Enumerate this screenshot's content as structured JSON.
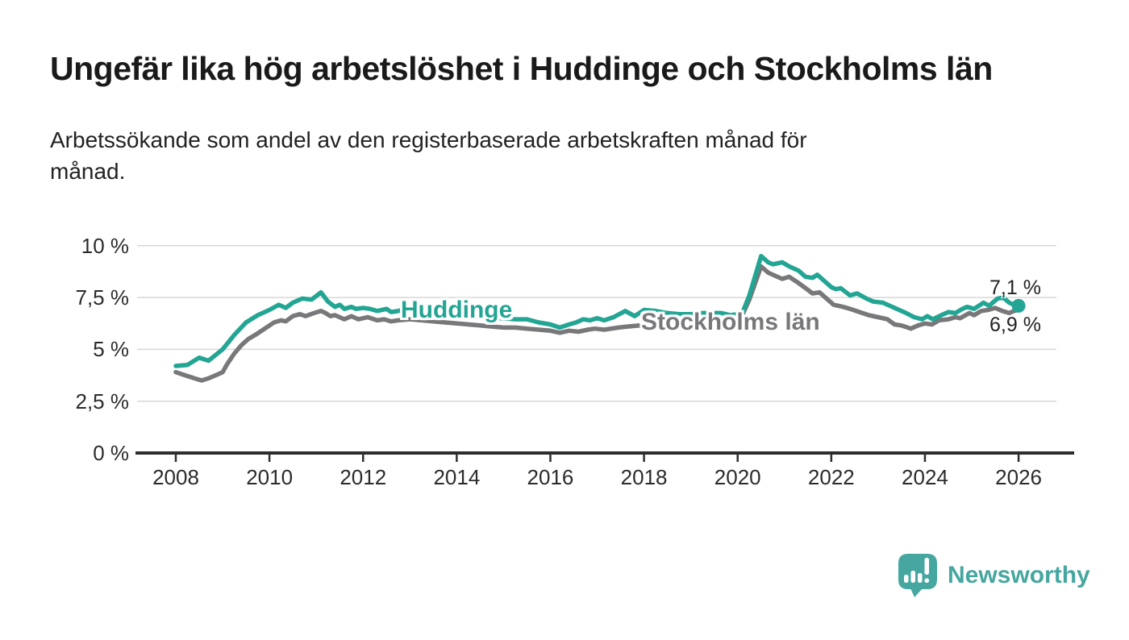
{
  "title": "Ungefär lika hög arbetslöshet i Huddinge och Stockholms län",
  "subtitle": "Arbetssökande som andel av den registerbaserade arbetskraften månad för\nmånad.",
  "logo": {
    "text": "Newsworthy",
    "icon": "newsworthy-speech-bubble-bar-chart-icon",
    "color": "#46a7a0"
  },
  "colors": {
    "huddinge_teal": "#23a594",
    "stockholm_gray": "#78787b",
    "axis": "#2e2e2e",
    "grid": "#d8d8d8",
    "text": "#2b2b2b"
  },
  "chart_data": {
    "type": "line",
    "title": "Ungefär lika hög arbetslöshet i Huddinge och Stockholms län",
    "subtitle": "Arbetssökande som andel av den registerbaserade arbetskraften månad för månad.",
    "xlabel": "",
    "ylabel": "",
    "xlim": [
      2007.15,
      2027.2
    ],
    "ylim": [
      0,
      10.4
    ],
    "grid": "horizontal",
    "legend_position": "inline-labels",
    "x_ticks": [
      2008,
      2010,
      2012,
      2014,
      2016,
      2018,
      2020,
      2022,
      2024,
      2026
    ],
    "x_tick_labels": [
      "2008",
      "2010",
      "2012",
      "2014",
      "2016",
      "2018",
      "2020",
      "2022",
      "2024",
      "2026"
    ],
    "y_ticks": [
      0,
      2.5,
      5,
      7.5,
      10
    ],
    "y_tick_labels": [
      "0 %",
      "2,5 %",
      "5 %",
      "7,5 %",
      "10 %"
    ],
    "series": [
      {
        "name": "Huddinge",
        "color": "#23a594",
        "end_label": "7,1 %",
        "end_value": 7.1,
        "end_dot": true,
        "points": [
          [
            2008.0,
            4.2
          ],
          [
            2008.25,
            4.25
          ],
          [
            2008.5,
            4.6
          ],
          [
            2008.7,
            4.45
          ],
          [
            2009.0,
            5.0
          ],
          [
            2009.25,
            5.7
          ],
          [
            2009.5,
            6.3
          ],
          [
            2009.75,
            6.65
          ],
          [
            2010.0,
            6.9
          ],
          [
            2010.2,
            7.15
          ],
          [
            2010.35,
            7.0
          ],
          [
            2010.5,
            7.25
          ],
          [
            2010.7,
            7.45
          ],
          [
            2010.9,
            7.4
          ],
          [
            2011.1,
            7.75
          ],
          [
            2011.25,
            7.3
          ],
          [
            2011.4,
            7.05
          ],
          [
            2011.5,
            7.15
          ],
          [
            2011.6,
            6.95
          ],
          [
            2011.75,
            7.05
          ],
          [
            2011.85,
            6.95
          ],
          [
            2012.0,
            7.0
          ],
          [
            2012.15,
            6.95
          ],
          [
            2012.3,
            6.85
          ],
          [
            2012.5,
            6.95
          ],
          [
            2012.6,
            6.8
          ],
          [
            2012.75,
            6.85
          ],
          [
            2013.0,
            7.0
          ],
          [
            2013.25,
            6.9
          ],
          [
            2013.5,
            6.8
          ],
          [
            2013.75,
            6.7
          ],
          [
            2014.0,
            6.65
          ],
          [
            2014.25,
            6.6
          ],
          [
            2014.5,
            6.55
          ],
          [
            2014.75,
            6.5
          ],
          [
            2015.0,
            6.5
          ],
          [
            2015.25,
            6.45
          ],
          [
            2015.5,
            6.45
          ],
          [
            2015.75,
            6.3
          ],
          [
            2016.0,
            6.2
          ],
          [
            2016.2,
            6.05
          ],
          [
            2016.4,
            6.2
          ],
          [
            2016.55,
            6.3
          ],
          [
            2016.7,
            6.45
          ],
          [
            2016.85,
            6.4
          ],
          [
            2017.0,
            6.5
          ],
          [
            2017.15,
            6.4
          ],
          [
            2017.35,
            6.55
          ],
          [
            2017.6,
            6.85
          ],
          [
            2017.8,
            6.6
          ],
          [
            2018.0,
            6.9
          ],
          [
            2018.25,
            6.85
          ],
          [
            2018.5,
            6.75
          ],
          [
            2018.75,
            6.7
          ],
          [
            2019.0,
            6.7
          ],
          [
            2019.25,
            6.75
          ],
          [
            2019.5,
            6.75
          ],
          [
            2019.65,
            6.75
          ],
          [
            2019.85,
            6.65
          ],
          [
            2020.0,
            6.7
          ],
          [
            2020.1,
            6.75
          ],
          [
            2020.25,
            7.6
          ],
          [
            2020.5,
            9.5
          ],
          [
            2020.65,
            9.2
          ],
          [
            2020.75,
            9.1
          ],
          [
            2020.95,
            9.2
          ],
          [
            2021.1,
            9.0
          ],
          [
            2021.3,
            8.8
          ],
          [
            2021.45,
            8.5
          ],
          [
            2021.6,
            8.45
          ],
          [
            2021.7,
            8.6
          ],
          [
            2021.85,
            8.3
          ],
          [
            2022.0,
            8.0
          ],
          [
            2022.1,
            7.9
          ],
          [
            2022.2,
            7.95
          ],
          [
            2022.4,
            7.6
          ],
          [
            2022.55,
            7.7
          ],
          [
            2022.75,
            7.45
          ],
          [
            2022.9,
            7.3
          ],
          [
            2023.1,
            7.25
          ],
          [
            2023.25,
            7.1
          ],
          [
            2023.4,
            6.95
          ],
          [
            2023.6,
            6.75
          ],
          [
            2023.77,
            6.55
          ],
          [
            2023.94,
            6.45
          ],
          [
            2024.05,
            6.6
          ],
          [
            2024.17,
            6.45
          ],
          [
            2024.35,
            6.65
          ],
          [
            2024.5,
            6.8
          ],
          [
            2024.65,
            6.75
          ],
          [
            2024.8,
            6.95
          ],
          [
            2024.9,
            7.05
          ],
          [
            2025.05,
            6.95
          ],
          [
            2025.15,
            7.1
          ],
          [
            2025.25,
            7.25
          ],
          [
            2025.37,
            7.1
          ],
          [
            2025.55,
            7.45
          ],
          [
            2025.67,
            7.5
          ],
          [
            2025.8,
            7.25
          ],
          [
            2025.9,
            7.15
          ],
          [
            2026.0,
            7.1
          ]
        ]
      },
      {
        "name": "Stockholms län",
        "color": "#78787b",
        "end_label": "6,9 %",
        "end_value": 6.9,
        "end_dot": false,
        "points": [
          [
            2008.0,
            3.9
          ],
          [
            2008.2,
            3.75
          ],
          [
            2008.4,
            3.6
          ],
          [
            2008.55,
            3.5
          ],
          [
            2008.7,
            3.6
          ],
          [
            2008.85,
            3.75
          ],
          [
            2009.0,
            3.9
          ],
          [
            2009.1,
            4.3
          ],
          [
            2009.25,
            4.8
          ],
          [
            2009.4,
            5.2
          ],
          [
            2009.55,
            5.5
          ],
          [
            2009.7,
            5.7
          ],
          [
            2009.9,
            6.0
          ],
          [
            2010.1,
            6.3
          ],
          [
            2010.25,
            6.4
          ],
          [
            2010.35,
            6.35
          ],
          [
            2010.5,
            6.6
          ],
          [
            2010.65,
            6.7
          ],
          [
            2010.77,
            6.6
          ],
          [
            2010.95,
            6.75
          ],
          [
            2011.1,
            6.85
          ],
          [
            2011.2,
            6.75
          ],
          [
            2011.3,
            6.6
          ],
          [
            2011.4,
            6.65
          ],
          [
            2011.6,
            6.45
          ],
          [
            2011.75,
            6.6
          ],
          [
            2011.9,
            6.45
          ],
          [
            2012.1,
            6.55
          ],
          [
            2012.3,
            6.4
          ],
          [
            2012.45,
            6.45
          ],
          [
            2012.6,
            6.35
          ],
          [
            2012.75,
            6.4
          ],
          [
            2013.0,
            6.45
          ],
          [
            2013.25,
            6.4
          ],
          [
            2013.5,
            6.35
          ],
          [
            2013.75,
            6.3
          ],
          [
            2014.0,
            6.25
          ],
          [
            2014.25,
            6.2
          ],
          [
            2014.5,
            6.15
          ],
          [
            2014.75,
            6.1
          ],
          [
            2015.0,
            6.05
          ],
          [
            2015.25,
            6.05
          ],
          [
            2015.5,
            6.0
          ],
          [
            2015.75,
            5.95
          ],
          [
            2016.0,
            5.9
          ],
          [
            2016.2,
            5.8
          ],
          [
            2016.4,
            5.9
          ],
          [
            2016.6,
            5.85
          ],
          [
            2016.8,
            5.95
          ],
          [
            2016.95,
            6.0
          ],
          [
            2017.15,
            5.95
          ],
          [
            2017.45,
            6.05
          ],
          [
            2017.65,
            6.1
          ],
          [
            2017.9,
            6.15
          ],
          [
            2018.1,
            6.2
          ],
          [
            2018.3,
            6.1
          ],
          [
            2018.5,
            6.05
          ],
          [
            2018.75,
            6.1
          ],
          [
            2019.0,
            6.2
          ],
          [
            2019.25,
            6.45
          ],
          [
            2019.4,
            6.55
          ],
          [
            2019.55,
            6.5
          ],
          [
            2019.7,
            6.45
          ],
          [
            2019.85,
            6.5
          ],
          [
            2020.0,
            6.55
          ],
          [
            2020.1,
            6.65
          ],
          [
            2020.25,
            7.4
          ],
          [
            2020.5,
            9.0
          ],
          [
            2020.65,
            8.7
          ],
          [
            2020.8,
            8.55
          ],
          [
            2020.95,
            8.4
          ],
          [
            2021.1,
            8.5
          ],
          [
            2021.3,
            8.2
          ],
          [
            2021.45,
            7.95
          ],
          [
            2021.6,
            7.7
          ],
          [
            2021.75,
            7.75
          ],
          [
            2021.9,
            7.45
          ],
          [
            2022.05,
            7.15
          ],
          [
            2022.25,
            7.05
          ],
          [
            2022.4,
            6.95
          ],
          [
            2022.6,
            6.8
          ],
          [
            2022.8,
            6.65
          ],
          [
            2023.0,
            6.55
          ],
          [
            2023.2,
            6.45
          ],
          [
            2023.35,
            6.2
          ],
          [
            2023.5,
            6.15
          ],
          [
            2023.7,
            6.0
          ],
          [
            2023.85,
            6.15
          ],
          [
            2024.0,
            6.25
          ],
          [
            2024.15,
            6.2
          ],
          [
            2024.3,
            6.4
          ],
          [
            2024.5,
            6.45
          ],
          [
            2024.65,
            6.55
          ],
          [
            2024.75,
            6.5
          ],
          [
            2024.95,
            6.75
          ],
          [
            2025.05,
            6.65
          ],
          [
            2025.2,
            6.85
          ],
          [
            2025.35,
            6.9
          ],
          [
            2025.5,
            7.0
          ],
          [
            2025.65,
            6.85
          ],
          [
            2025.8,
            6.75
          ],
          [
            2025.9,
            6.85
          ],
          [
            2026.0,
            6.9
          ]
        ]
      }
    ]
  }
}
